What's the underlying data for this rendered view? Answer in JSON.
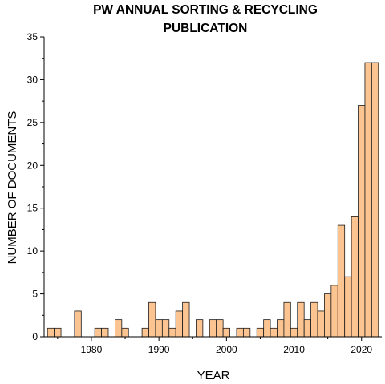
{
  "chart_data": {
    "type": "bar",
    "title_lines": [
      "PW ANNUAL SORTING & RECYCLING",
      "PUBLICATION"
    ],
    "xlabel": "YEAR",
    "ylabel": "NUMBER OF DOCUMENTS",
    "xlim": [
      1973,
      2023
    ],
    "ylim": [
      0,
      35
    ],
    "xticks": [
      1980,
      1990,
      2000,
      2010,
      2020
    ],
    "yticks": [
      0,
      5,
      10,
      15,
      20,
      25,
      30,
      35
    ],
    "grid": false,
    "bar_color": "#fbc491",
    "bar_edge_color": "#1a1a1a",
    "x": [
      1974,
      1975,
      1978,
      1981,
      1982,
      1984,
      1985,
      1988,
      1989,
      1990,
      1991,
      1992,
      1993,
      1994,
      1996,
      1998,
      1999,
      2000,
      2002,
      2003,
      2005,
      2006,
      2007,
      2008,
      2009,
      2010,
      2011,
      2012,
      2013,
      2014,
      2015,
      2016,
      2017,
      2018,
      2019,
      2020,
      2021,
      2022
    ],
    "values": [
      1,
      1,
      3,
      1,
      1,
      2,
      1,
      1,
      4,
      2,
      2,
      1,
      3,
      4,
      2,
      2,
      2,
      1,
      1,
      1,
      1,
      2,
      1,
      2,
      4,
      1,
      4,
      2,
      4,
      3,
      5,
      6,
      13,
      7,
      14,
      27,
      32,
      32
    ]
  }
}
